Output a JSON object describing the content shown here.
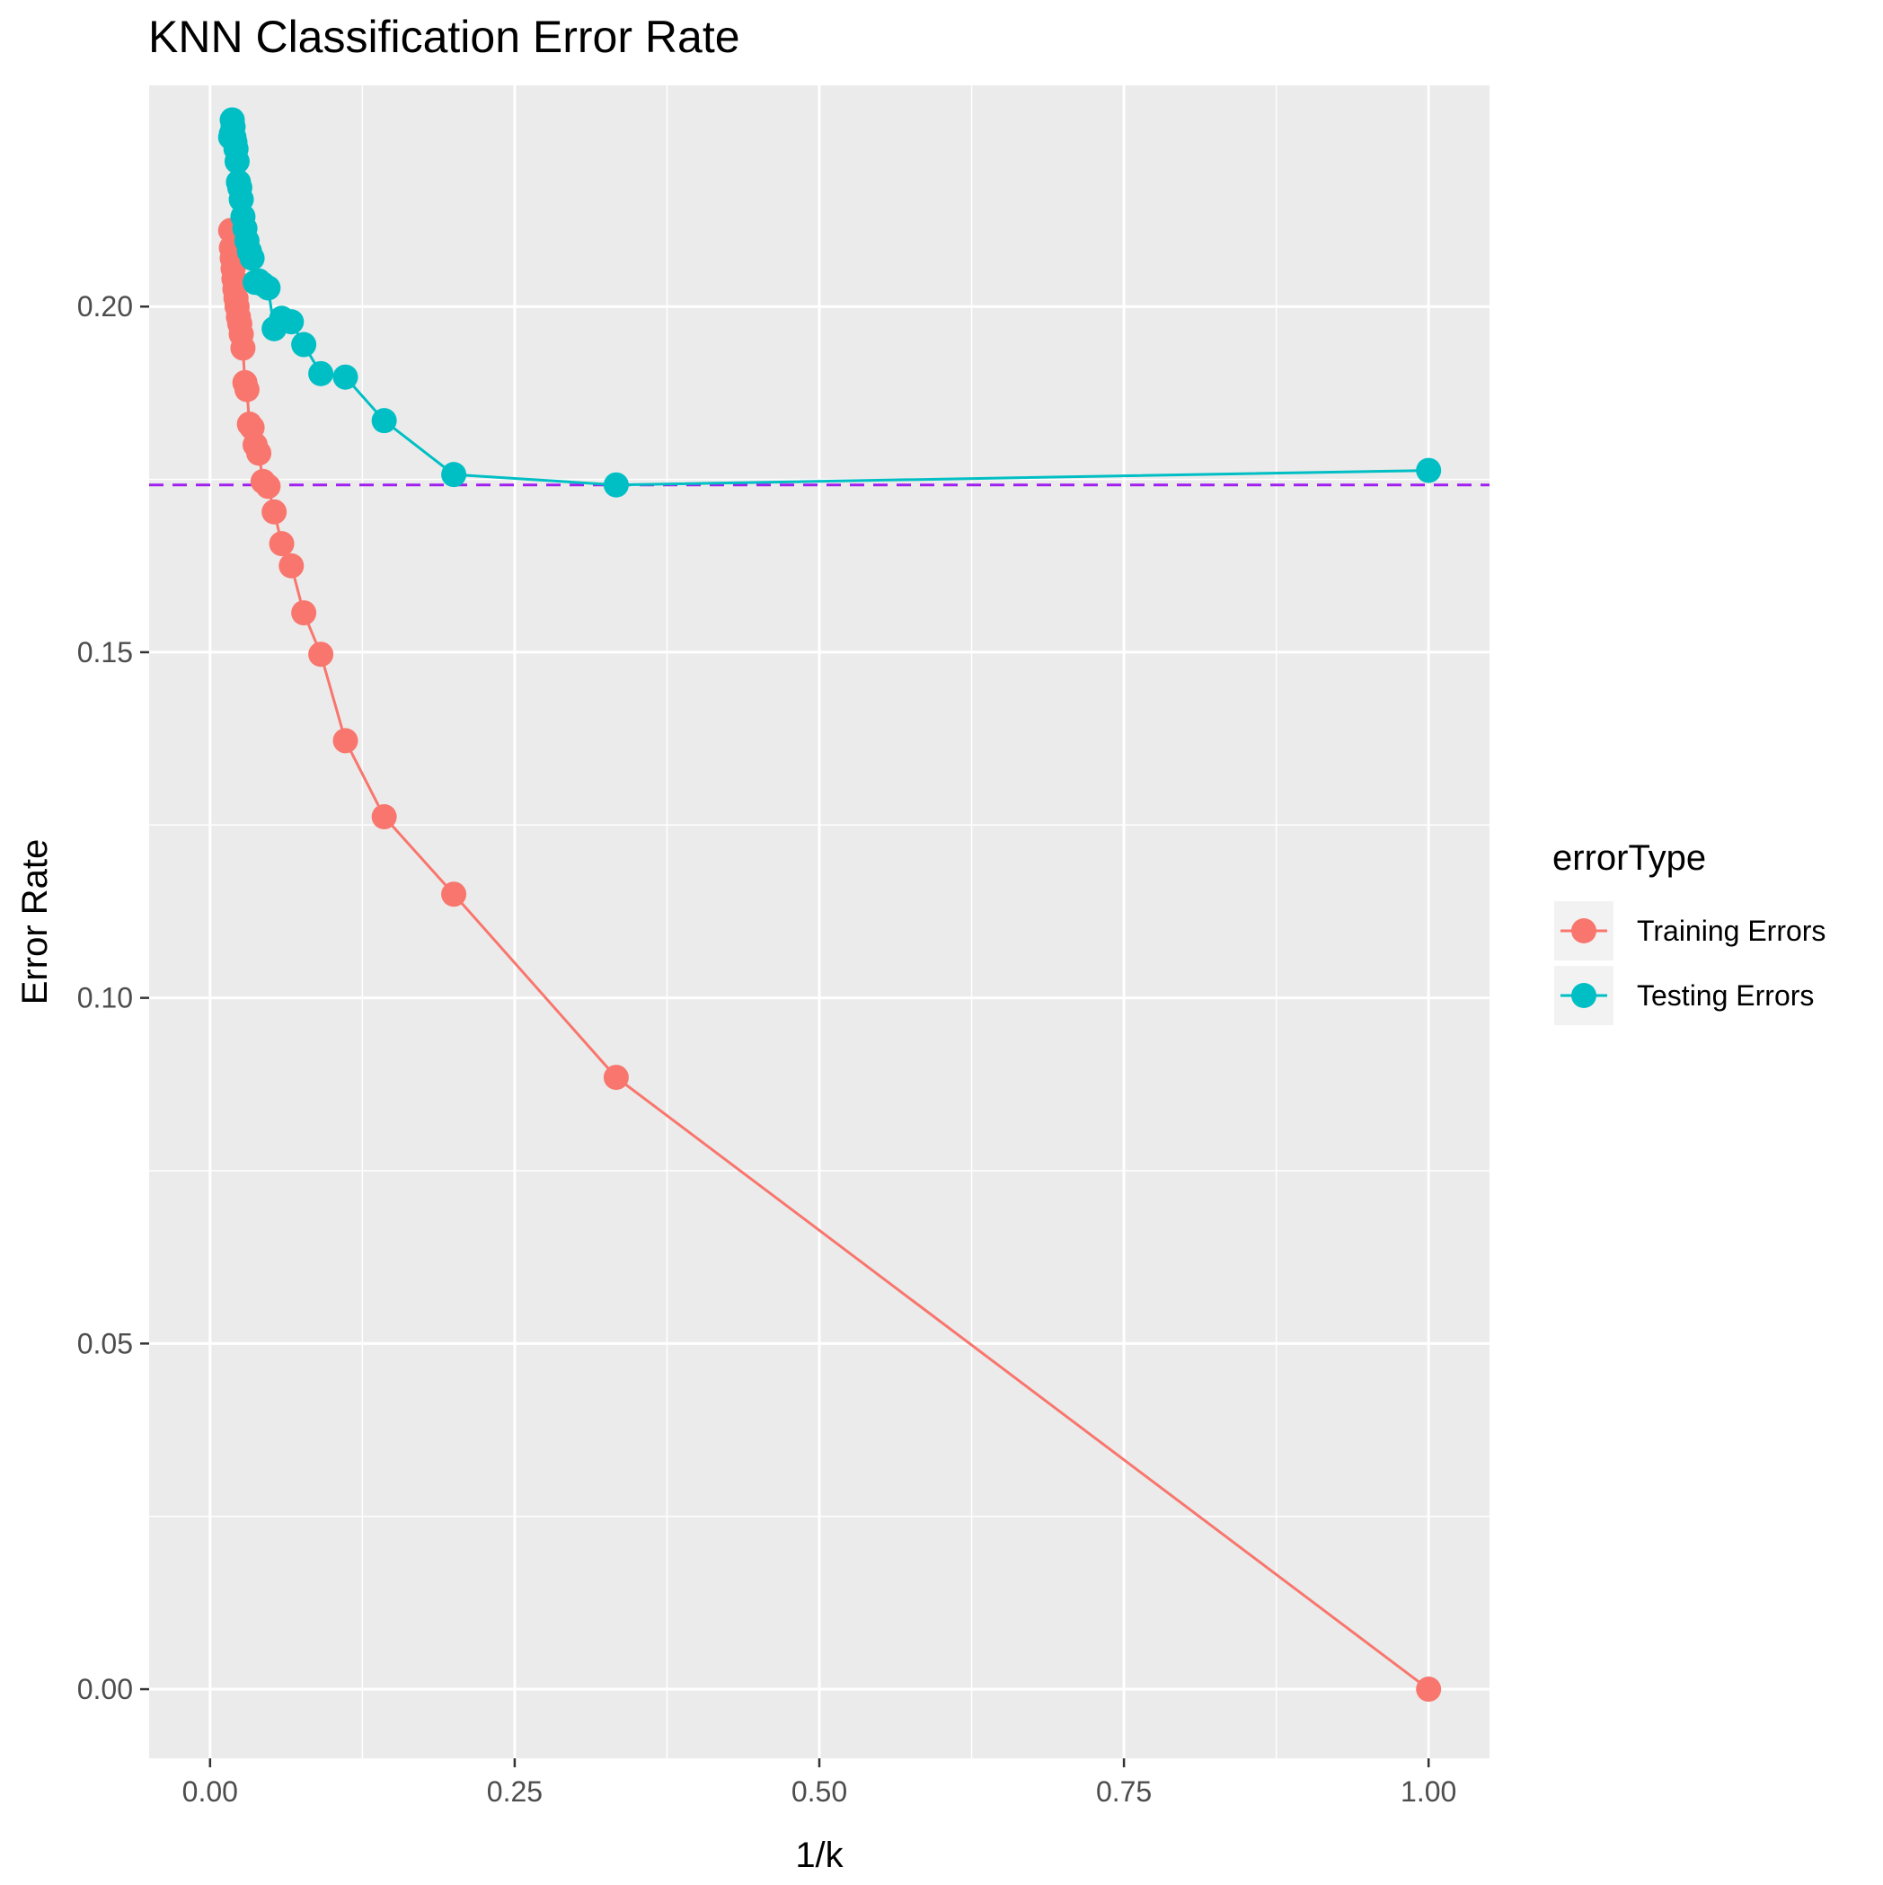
{
  "chart_data": {
    "type": "line",
    "title": "KNN Classification Error Rate",
    "xlabel": "1/k",
    "ylabel": "Error Rate",
    "xlim": [
      -0.05,
      1.05
    ],
    "ylim": [
      -0.01,
      0.232
    ],
    "x_ticks": [
      0.0,
      0.25,
      0.5,
      0.75,
      1.0
    ],
    "x_tick_labels": [
      "0.00",
      "0.25",
      "0.50",
      "0.75",
      "1.00"
    ],
    "y_ticks": [
      0.0,
      0.05,
      0.1,
      0.15,
      0.2
    ],
    "y_tick_labels": [
      "0.00",
      "0.05",
      "0.10",
      "0.15",
      "0.20"
    ],
    "grid": true,
    "legend_title": "errorType",
    "legend_position": "right",
    "reference_line": {
      "orientation": "horizontal",
      "y": 0.1742,
      "color": "#A020F0",
      "style": "dashed"
    },
    "series": [
      {
        "name": "Training Errors",
        "color": "#F8766D",
        "points": [
          [
            1.0,
            0.0
          ],
          [
            0.3333,
            0.0885
          ],
          [
            0.2,
            0.115
          ],
          [
            0.1429,
            0.1262
          ],
          [
            0.1111,
            0.1372
          ],
          [
            0.0909,
            0.1497
          ],
          [
            0.0769,
            0.1557
          ],
          [
            0.0667,
            0.1625
          ],
          [
            0.0588,
            0.1657
          ],
          [
            0.0526,
            0.1703
          ],
          [
            0.0476,
            0.174
          ],
          [
            0.0435,
            0.1747
          ],
          [
            0.04,
            0.1788
          ],
          [
            0.037,
            0.18
          ],
          [
            0.0345,
            0.1825
          ],
          [
            0.0323,
            0.183
          ],
          [
            0.0303,
            0.188
          ],
          [
            0.0286,
            0.189
          ],
          [
            0.027,
            0.194
          ],
          [
            0.0256,
            0.196
          ],
          [
            0.0244,
            0.1975
          ],
          [
            0.0233,
            0.1985
          ],
          [
            0.0222,
            0.2
          ],
          [
            0.0213,
            0.2012
          ],
          [
            0.0204,
            0.2025
          ],
          [
            0.0196,
            0.204
          ],
          [
            0.0189,
            0.2055
          ],
          [
            0.0182,
            0.207
          ],
          [
            0.0175,
            0.2085
          ],
          [
            0.0169,
            0.211
          ]
        ]
      },
      {
        "name": "Testing Errors",
        "color": "#00BFC4",
        "points": [
          [
            1.0,
            0.1763
          ],
          [
            0.3333,
            0.1742
          ],
          [
            0.2,
            0.1757
          ],
          [
            0.1429,
            0.1835
          ],
          [
            0.1111,
            0.1898
          ],
          [
            0.0909,
            0.1903
          ],
          [
            0.0769,
            0.1945
          ],
          [
            0.0667,
            0.1978
          ],
          [
            0.0588,
            0.1983
          ],
          [
            0.0526,
            0.1968
          ],
          [
            0.0476,
            0.2027
          ],
          [
            0.0435,
            0.2032
          ],
          [
            0.04,
            0.2037
          ],
          [
            0.037,
            0.2035
          ],
          [
            0.0345,
            0.207
          ],
          [
            0.0323,
            0.208
          ],
          [
            0.0303,
            0.2095
          ],
          [
            0.0286,
            0.2113
          ],
          [
            0.027,
            0.213
          ],
          [
            0.0256,
            0.2155
          ],
          [
            0.0244,
            0.2172
          ],
          [
            0.0233,
            0.218
          ],
          [
            0.0222,
            0.221
          ],
          [
            0.0213,
            0.2228
          ],
          [
            0.0204,
            0.2238
          ],
          [
            0.0196,
            0.2245
          ],
          [
            0.0189,
            0.226
          ],
          [
            0.0182,
            0.227
          ],
          [
            0.0175,
            0.225
          ],
          [
            0.0169,
            0.2245
          ]
        ]
      }
    ]
  }
}
